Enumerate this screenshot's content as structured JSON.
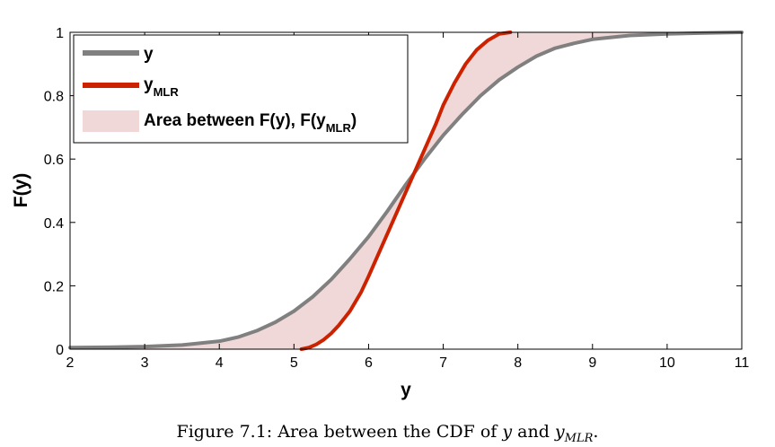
{
  "chart_data": {
    "type": "line",
    "xlabel": "y",
    "ylabel": "F(y)",
    "xlim": [
      2,
      11
    ],
    "ylim": [
      0,
      1
    ],
    "xticks": [
      "2",
      "3",
      "4",
      "5",
      "6",
      "7",
      "8",
      "9",
      "10",
      "11"
    ],
    "yticks": [
      "0",
      "0.2",
      "0.4",
      "0.6",
      "0.8",
      "1"
    ],
    "grid": false,
    "legend_position": "top-left",
    "series": [
      {
        "name": "y",
        "name_sub": "",
        "color": "#808080",
        "x": [
          2,
          2.5,
          3,
          3.5,
          4,
          4.25,
          4.5,
          4.75,
          5,
          5.25,
          5.5,
          5.75,
          6,
          6.25,
          6.5,
          6.75,
          7,
          7.25,
          7.5,
          7.75,
          8,
          8.25,
          8.5,
          8.75,
          9,
          9.5,
          10,
          10.5,
          11
        ],
        "y": [
          0.005,
          0.006,
          0.008,
          0.013,
          0.025,
          0.038,
          0.058,
          0.085,
          0.12,
          0.165,
          0.22,
          0.285,
          0.355,
          0.435,
          0.52,
          0.6,
          0.675,
          0.74,
          0.8,
          0.85,
          0.89,
          0.925,
          0.95,
          0.965,
          0.978,
          0.99,
          0.995,
          0.998,
          1.0
        ]
      },
      {
        "name": "y",
        "name_sub": "MLR",
        "color": "#cc2200",
        "x": [
          5.1,
          5.2,
          5.3,
          5.4,
          5.5,
          5.6,
          5.75,
          5.9,
          6.0,
          6.15,
          6.3,
          6.45,
          6.6,
          6.75,
          6.9,
          7.0,
          7.15,
          7.3,
          7.45,
          7.6,
          7.75,
          7.9
        ],
        "y": [
          0.0,
          0.005,
          0.015,
          0.03,
          0.05,
          0.075,
          0.12,
          0.18,
          0.23,
          0.31,
          0.39,
          0.47,
          0.55,
          0.63,
          0.71,
          0.77,
          0.84,
          0.9,
          0.945,
          0.975,
          0.995,
          1.0
        ]
      }
    ],
    "area": {
      "name": "Area between F(y), F(y",
      "name_sub": "MLR",
      "name_tail": ")",
      "color": "#f0d8d8"
    }
  },
  "caption": {
    "prefix": "Figure 7.1: Area between the CDF of ",
    "var1": "y",
    "mid": " and ",
    "var2": "y",
    "sub": "MLR",
    "suffix": "."
  }
}
